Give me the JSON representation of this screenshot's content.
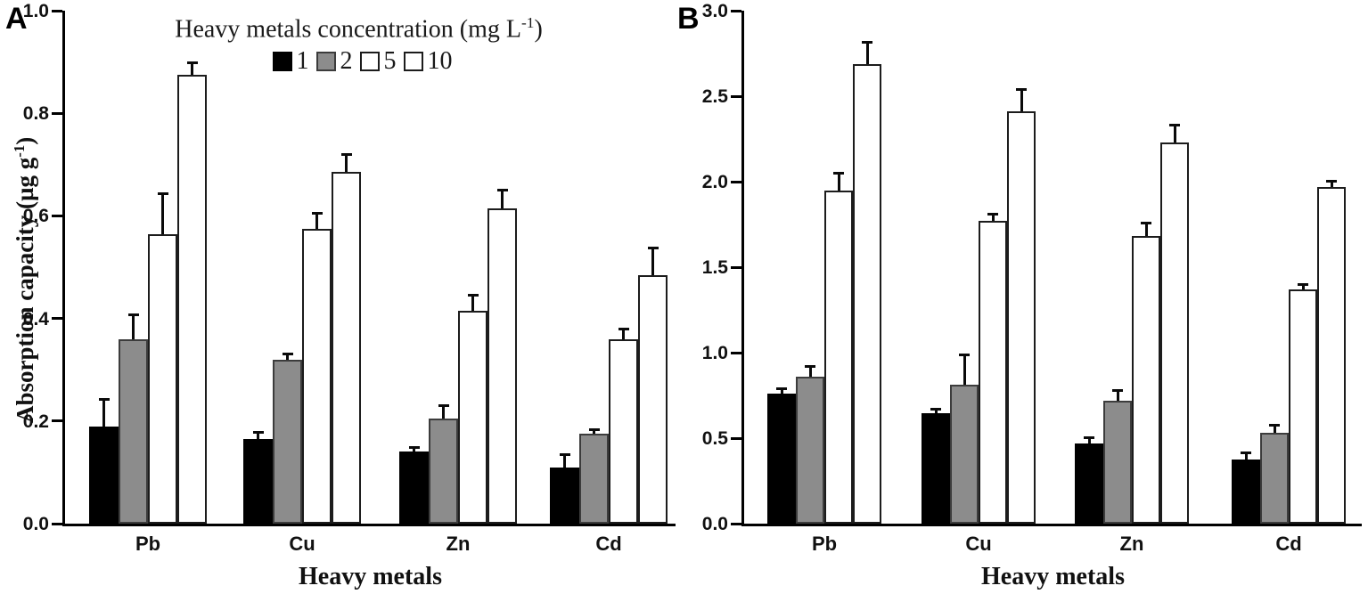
{
  "figure": {
    "legend": {
      "title_prefix": "Heavy metals concentration (mg L",
      "title_sup": "-1",
      "title_suffix": ")",
      "items": [
        {
          "label": "1",
          "fill": "#000000",
          "border": "#000000"
        },
        {
          "label": "2",
          "fill": "#8c8c8c",
          "border": "#3c3c3c"
        },
        {
          "label": "5",
          "fill": "#ffffff",
          "border": "#1c1c1c"
        },
        {
          "label": "10",
          "fill": "#ffffff",
          "border": "#1c1c1c"
        }
      ]
    },
    "colors": {
      "bar_black": "#000000",
      "bar_gray": "#8c8c8c",
      "bar_white": "#ffffff",
      "axis": "#000000"
    }
  },
  "chart_data": [
    {
      "type": "bar",
      "panel": "A",
      "ylabel_prefix": "Absorption capacity (µg g",
      "ylabel_sup": "-1",
      "ylabel_suffix": ")",
      "xlabel": "Heavy metals",
      "categories": [
        "Pb",
        "Cu",
        "Zn",
        "Cd"
      ],
      "legend_position": "top-center",
      "grid": false,
      "ylim": [
        0.0,
        1.0
      ],
      "yticks": [
        0.0,
        0.2,
        0.4,
        0.6,
        0.8,
        1.0
      ],
      "ytick_labels": [
        "0.0",
        "0.2",
        "0.4",
        "0.6",
        "0.8",
        "1.0"
      ],
      "series": [
        {
          "name": "1",
          "fill": "#000000",
          "border": "#000000",
          "values": [
            0.19,
            0.165,
            0.14,
            0.11
          ],
          "errors": [
            0.05,
            0.01,
            0.006,
            0.022
          ]
        },
        {
          "name": "2",
          "fill": "#8c8c8c",
          "border": "#3c3c3c",
          "values": [
            0.36,
            0.32,
            0.205,
            0.175
          ],
          "errors": [
            0.045,
            0.008,
            0.022,
            0.006
          ]
        },
        {
          "name": "5",
          "fill": "#ffffff",
          "border": "#1c1c1c",
          "values": [
            0.565,
            0.575,
            0.415,
            0.36
          ],
          "errors": [
            0.075,
            0.028,
            0.028,
            0.016
          ]
        },
        {
          "name": "10",
          "fill": "#ffffff",
          "border": "#1c1c1c",
          "values": [
            0.875,
            0.685,
            0.615,
            0.485
          ],
          "errors": [
            0.02,
            0.032,
            0.033,
            0.05
          ]
        }
      ]
    },
    {
      "type": "bar",
      "panel": "B",
      "ylabel_prefix": "",
      "ylabel_sup": "",
      "ylabel_suffix": "",
      "xlabel": "Heavy metals",
      "categories": [
        "Pb",
        "Cu",
        "Zn",
        "Cd"
      ],
      "grid": false,
      "ylim": [
        0.0,
        3.0
      ],
      "yticks": [
        0.0,
        0.5,
        1.0,
        1.5,
        2.0,
        2.5,
        3.0
      ],
      "ytick_labels": [
        "0.0",
        "0.5",
        "1.0",
        "1.5",
        "2.0",
        "2.5",
        "3.0"
      ],
      "series": [
        {
          "name": "1",
          "fill": "#000000",
          "border": "#000000",
          "values": [
            0.76,
            0.645,
            0.47,
            0.375
          ],
          "errors": [
            0.02,
            0.015,
            0.025,
            0.03
          ]
        },
        {
          "name": "2",
          "fill": "#8c8c8c",
          "border": "#3c3c3c",
          "values": [
            0.86,
            0.81,
            0.72,
            0.53
          ],
          "errors": [
            0.05,
            0.17,
            0.05,
            0.04
          ]
        },
        {
          "name": "5",
          "fill": "#ffffff",
          "border": "#1c1c1c",
          "values": [
            1.95,
            1.77,
            1.68,
            1.37
          ],
          "errors": [
            0.09,
            0.03,
            0.07,
            0.02
          ]
        },
        {
          "name": "10",
          "fill": "#ffffff",
          "border": "#1c1c1c",
          "values": [
            2.69,
            2.41,
            2.23,
            1.97
          ],
          "errors": [
            0.115,
            0.12,
            0.095,
            0.025
          ]
        }
      ]
    }
  ]
}
